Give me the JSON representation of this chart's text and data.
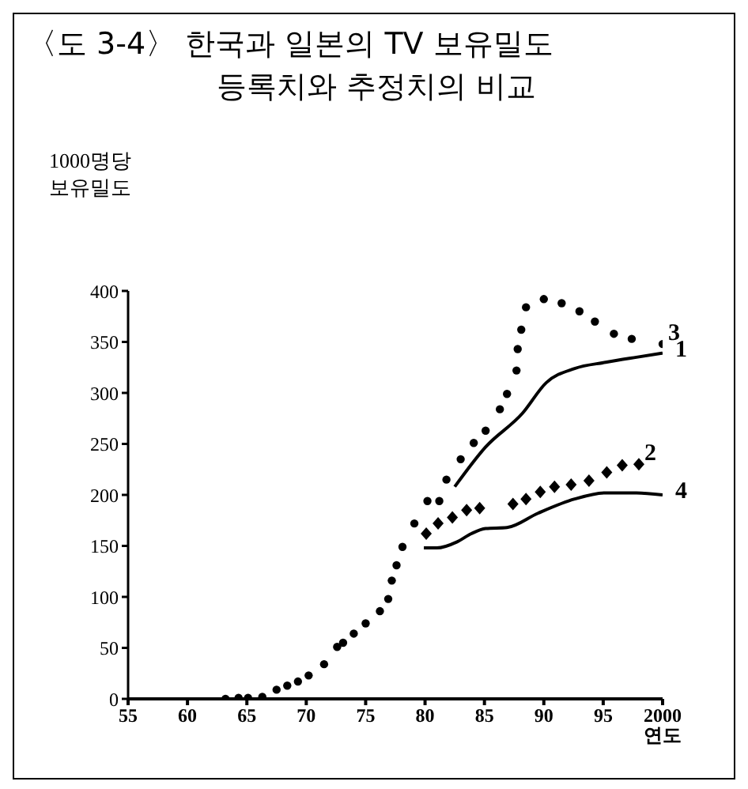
{
  "chart_data": {
    "type": "line",
    "title": "〈도 3-4〉 한국과 일본의 TV 보유밀도\n등록치와 추정치의 비교",
    "ylabel": "1000명당\n보유밀도",
    "xlabel": "연도",
    "xlim": [
      1955,
      2000
    ],
    "xticks": [
      {
        "value": 1955,
        "label": "55"
      },
      {
        "value": 1960,
        "label": "60"
      },
      {
        "value": 1965,
        "label": "65"
      },
      {
        "value": 1970,
        "label": "70"
      },
      {
        "value": 1975,
        "label": "75"
      },
      {
        "value": 1980,
        "label": "80"
      },
      {
        "value": 1985,
        "label": "85"
      },
      {
        "value": 1990,
        "label": "90"
      },
      {
        "value": 1995,
        "label": "95"
      },
      2000
    ],
    "ylim": [
      0,
      400
    ],
    "yticks": [
      0,
      50,
      100,
      150,
      200,
      250,
      300,
      350,
      400
    ],
    "grid": false,
    "legend": false,
    "series": [
      {
        "name": "1",
        "type": "line",
        "color": "#000000",
        "line_style": "solid",
        "marker": "none",
        "x": [
          1982.5,
          1985.1,
          1988.2,
          1990.2,
          1992.6,
          1995.2,
          1997.8,
          2000
        ],
        "values": [
          208,
          247,
          280,
          310,
          324,
          330,
          335,
          339
        ]
      },
      {
        "name": "2",
        "type": "scatter",
        "color": "#000000",
        "marker": "diamond",
        "x": [
          1980.1,
          1981.1,
          1982.3,
          1983.5,
          1984.6,
          1987.4,
          1988.5,
          1989.7,
          1990.9,
          1992.3,
          1993.8,
          1995.3,
          1996.6,
          1998
        ],
        "values": [
          162,
          172,
          178,
          185,
          187,
          191,
          196,
          203,
          208,
          210,
          214,
          222,
          229,
          230
        ]
      },
      {
        "name": "3",
        "type": "scatter",
        "color": "#000000",
        "marker": "circle",
        "x": [
          1963.2,
          1964.3,
          1965.1,
          1966.3,
          1967.5,
          1968.4,
          1969.3,
          1970.2,
          1971.5,
          1972.6,
          1973.1,
          1974,
          1975,
          1976.2,
          1976.9,
          1977.2,
          1977.6,
          1978.1,
          1979.1,
          1980.2,
          1981.2,
          1981.8,
          1983,
          1984.1,
          1985.1,
          1986.3,
          1986.9,
          1987.7,
          1987.8,
          1988.1,
          1988.5,
          1990,
          1991.5,
          1993,
          1994.3,
          1995.9,
          1997.4,
          2000
        ],
        "values": [
          0,
          1,
          1,
          2,
          9,
          13,
          17,
          23,
          34,
          51,
          55,
          64,
          74,
          86,
          98,
          116,
          131,
          149,
          172,
          194,
          194,
          215,
          235,
          251,
          263,
          284,
          299,
          322,
          343,
          362,
          384,
          392,
          388,
          380,
          370,
          358,
          353,
          348
        ]
      },
      {
        "name": "4",
        "type": "line",
        "color": "#000000",
        "line_style": "solid",
        "marker": "none",
        "x": [
          1979.9,
          1981,
          1982.7,
          1983.9,
          1985.1,
          1986.9,
          1989.5,
          1992.6,
          1995.2,
          1997.8,
          2000
        ],
        "values": [
          148,
          148,
          154,
          162,
          167,
          168,
          182,
          196,
          202,
          202,
          200
        ]
      }
    ]
  }
}
